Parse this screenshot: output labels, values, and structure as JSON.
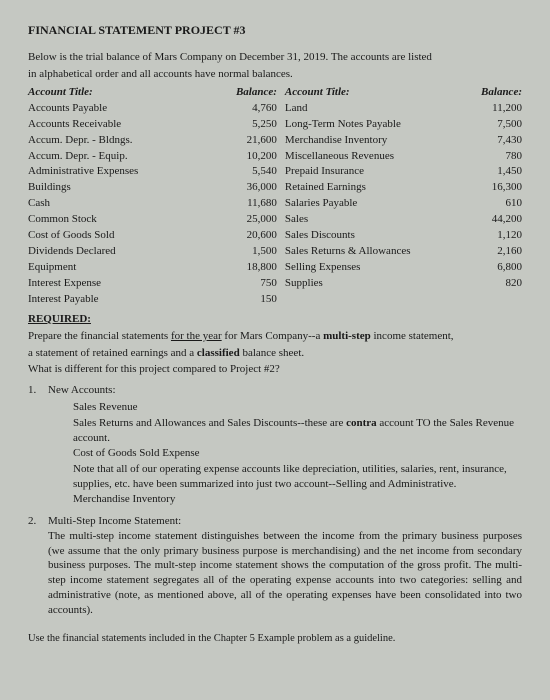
{
  "title": "FINANCIAL STATEMENT PROJECT #3",
  "intro_line1": "Below is the trial balance of Mars Company on December 31, 2019. The accounts are listed",
  "intro_line2": "in alphabetical order and all accounts have normal balances.",
  "headers": {
    "acct": "Account Title:",
    "bal": "Balance:"
  },
  "left_accounts": [
    {
      "name": "Accounts Payable",
      "bal": "4,760"
    },
    {
      "name": "Accounts Receivable",
      "bal": "5,250"
    },
    {
      "name": "Accum. Depr. - Bldngs.",
      "bal": "21,600"
    },
    {
      "name": "Accum. Depr. - Equip.",
      "bal": "10,200"
    },
    {
      "name": "Administrative Expenses",
      "bal": "5,540"
    },
    {
      "name": "Buildings",
      "bal": "36,000"
    },
    {
      "name": "Cash",
      "bal": "11,680"
    },
    {
      "name": "Common Stock",
      "bal": "25,000"
    },
    {
      "name": "Cost of Goods Sold",
      "bal": "20,600"
    },
    {
      "name": "Dividends Declared",
      "bal": "1,500"
    },
    {
      "name": "Equipment",
      "bal": "18,800"
    },
    {
      "name": "Interest Expense",
      "bal": "750"
    },
    {
      "name": "Interest Payable",
      "bal": "150"
    }
  ],
  "right_accounts": [
    {
      "name": "Land",
      "bal": "11,200"
    },
    {
      "name": "Long-Term Notes Payable",
      "bal": "7,500"
    },
    {
      "name": "Merchandise Inventory",
      "bal": "7,430"
    },
    {
      "name": "Miscellaneous Revenues",
      "bal": "780"
    },
    {
      "name": "Prepaid Insurance",
      "bal": "1,450"
    },
    {
      "name": "Retained Earnings",
      "bal": "16,300"
    },
    {
      "name": "Salaries Payable",
      "bal": "610"
    },
    {
      "name": "Sales",
      "bal": "44,200"
    },
    {
      "name": "Sales Discounts",
      "bal": "1,120"
    },
    {
      "name": "Sales Returns & Allowances",
      "bal": "2,160"
    },
    {
      "name": "Selling Expenses",
      "bal": "6,800"
    },
    {
      "name": "Supplies",
      "bal": "820"
    }
  ],
  "required_label": "REQUIRED:",
  "req_p1a": "Prepare the financial statements ",
  "req_p1b": "for the year",
  "req_p1c": " for Mars Company--a ",
  "req_p1d": "multi-step",
  "req_p1e": " income statement,",
  "req_p2a": "a statement of retained earnings and a ",
  "req_p2b": "classified",
  "req_p2c": " balance sheet.",
  "req_p3": "What is different for this project compared to Project #2?",
  "item1_num": "1.",
  "item1_label": "New Accounts:",
  "item1_lines": [
    "Sales Revenue",
    "Sales Returns and Allowances and Sales Discounts--these are contra account TO the Sales Revenue account.",
    "Cost of Goods Sold Expense",
    "Note that all of our operating expense accounts like depreciation, utilities, salaries, rent, insurance, supplies, etc. have been summarized into just two account--Selling and Administrative.",
    "Merchandise Inventory"
  ],
  "item2_num": "2.",
  "item2_label": "Multi-Step Income Statement:",
  "item2_body": "The multi-step income statement distinguishes between the income from the primary business purposes (we assume that the only primary business purpose is merchandising) and the net income from secondary business purposes. The mult-step income statement shows the computation of the gross profit. The multi-step income statement segregates all of the operating expense accounts into two categories: selling and administrative (note, as mentioned above, all of the operating expenses have been consolidated into two accounts).",
  "footer": "Use the financial statements included in the Chapter 5 Example problem as a guideline.",
  "contra_word": "contra"
}
